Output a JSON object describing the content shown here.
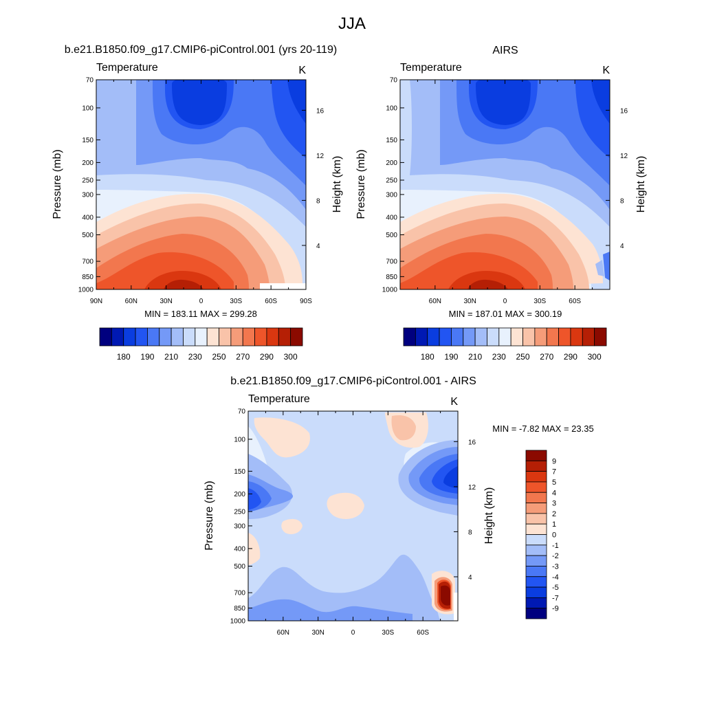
{
  "figure": {
    "title": "JJA"
  },
  "colors": {
    "abs_levels": [
      "#00007f",
      "#0019b3",
      "#0a3de0",
      "#2255f2",
      "#4a78f5",
      "#7499f7",
      "#a3bdf8",
      "#cadcfb",
      "#e8f1fd",
      "#fde3d3",
      "#f9c3a9",
      "#f59c79",
      "#f2774e",
      "#ee552a",
      "#da3710",
      "#b51f05",
      "#8b0a00"
    ],
    "diff_levels": [
      "#00007f",
      "#0019b3",
      "#0a3de0",
      "#2255f2",
      "#4a78f5",
      "#7499f7",
      "#a3bdf8",
      "#cadcfb",
      "#fde3d3",
      "#f9c3a9",
      "#f59c79",
      "#f2774e",
      "#ee552a",
      "#da3710",
      "#b51f05",
      "#8b0a00"
    ]
  },
  "chart_data": [
    {
      "type": "heatmap",
      "title": "b.e21.B1850.f09_g17.CMIP6-piControl.001 (yrs 20-119)",
      "left_string": "Temperature",
      "right_string": "K",
      "xlabel": "",
      "ylabel": "Pressure (mb)",
      "y2label": "Height (km)",
      "x_ticks": [
        "90N",
        "60N",
        "30N",
        "0",
        "30S",
        "60S",
        "90S"
      ],
      "x_values": [
        90,
        60,
        30,
        0,
        -30,
        -60,
        -90
      ],
      "xlim": [
        90,
        -90
      ],
      "y_ticks": [
        70,
        100,
        150,
        200,
        250,
        300,
        400,
        500,
        700,
        850,
        1000
      ],
      "ylim": [
        1000,
        70
      ],
      "y_scale": "log",
      "y2_ticks": [
        4,
        8,
        12,
        16
      ],
      "stats": "MIN = 183.11  MAX = 299.28",
      "min": 183.11,
      "max": 299.28,
      "colorbar": {
        "orientation": "horizontal",
        "levels": [
          175,
          180,
          185,
          190,
          200,
          210,
          220,
          230,
          240,
          250,
          260,
          270,
          280,
          290,
          295,
          300
        ],
        "labels": [
          "180",
          "190",
          "210",
          "230",
          "250",
          "270",
          "290",
          "300"
        ]
      }
    },
    {
      "type": "heatmap",
      "title": "AIRS",
      "left_string": "Temperature",
      "right_string": "K",
      "xlabel": "",
      "ylabel": "Pressure (mb)",
      "y2label": "Height (km)",
      "x_ticks": [
        "60N",
        "30N",
        "0",
        "30S",
        "60S"
      ],
      "x_values": [
        60,
        30,
        0,
        -30,
        -60
      ],
      "xlim": [
        90,
        -90
      ],
      "y_ticks": [
        70,
        100,
        150,
        200,
        250,
        300,
        400,
        500,
        700,
        850,
        1000
      ],
      "ylim": [
        1000,
        70
      ],
      "y_scale": "log",
      "y2_ticks": [
        4,
        8,
        12,
        16
      ],
      "stats": "MIN = 187.01  MAX = 300.19",
      "min": 187.01,
      "max": 300.19,
      "colorbar": {
        "orientation": "horizontal",
        "levels": [
          175,
          180,
          185,
          190,
          200,
          210,
          220,
          230,
          240,
          250,
          260,
          270,
          280,
          290,
          295,
          300
        ],
        "labels": [
          "180",
          "190",
          "210",
          "230",
          "250",
          "270",
          "290",
          "300"
        ]
      }
    },
    {
      "type": "heatmap",
      "title": "b.e21.B1850.f09_g17.CMIP6-piControl.001 - AIRS",
      "left_string": "Temperature",
      "right_string": "K",
      "xlabel": "",
      "ylabel": "Pressure (mb)",
      "y2label": "Height (km)",
      "x_ticks": [
        "60N",
        "30N",
        "0",
        "30S",
        "60S"
      ],
      "x_values": [
        60,
        30,
        0,
        -30,
        -60
      ],
      "xlim": [
        90,
        -90
      ],
      "y_ticks": [
        70,
        100,
        150,
        200,
        250,
        300,
        400,
        500,
        700,
        850,
        1000
      ],
      "ylim": [
        1000,
        70
      ],
      "y_scale": "log",
      "y2_ticks": [
        4,
        8,
        12,
        16
      ],
      "stats": "MIN =  -7.82  MAX =  23.35",
      "min": -7.82,
      "max": 23.35,
      "colorbar": {
        "orientation": "vertical",
        "levels": [
          9,
          7,
          5,
          4,
          3,
          2,
          1,
          0,
          -1,
          -2,
          -3,
          -4,
          -5,
          -7,
          -9
        ],
        "labels": [
          "9",
          "7",
          "5",
          "4",
          "3",
          "2",
          "1",
          "0",
          "-1",
          "-2",
          "-3",
          "-4",
          "-5",
          "-7",
          "-9"
        ]
      }
    }
  ]
}
